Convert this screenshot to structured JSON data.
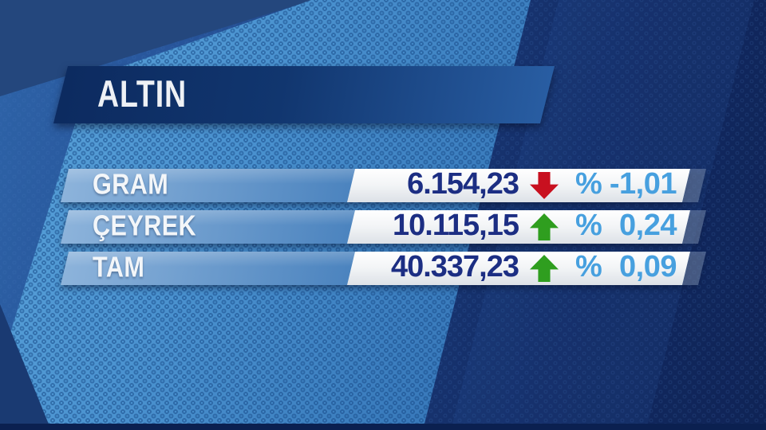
{
  "header": {
    "title": "ALTIN"
  },
  "rows": [
    {
      "label": "GRAM",
      "value": "6.154,23",
      "direction": "down",
      "percent_symbol": "%",
      "change": "-1,01"
    },
    {
      "label": "ÇEYREK",
      "value": "10.115,15",
      "direction": "up",
      "percent_symbol": "%",
      "change": "0,24"
    },
    {
      "label": "TAM",
      "value": "40.337,23",
      "direction": "up",
      "percent_symbol": "%",
      "change": "0,09"
    }
  ],
  "chart_data": {
    "type": "table",
    "title": "ALTIN",
    "categories": [
      "GRAM",
      "ÇEYREK",
      "TAM"
    ],
    "series": [
      {
        "name": "price_try",
        "values": [
          6154.23,
          10115.15,
          40337.23
        ]
      },
      {
        "name": "change_percent",
        "values": [
          -1.01,
          0.24,
          0.09
        ]
      },
      {
        "name": "trend_direction",
        "values": [
          "down",
          "up",
          "up"
        ]
      }
    ],
    "legend_position": "none",
    "grid": false
  },
  "colors": {
    "value_text": "#1c2e83",
    "percent_text": "#47a0df",
    "up_arrow": "#2f9e1f",
    "down_arrow": "#c8101f",
    "header_bar_dark": "#0c2a5f",
    "header_bar_light": "#2a60a6",
    "label_bar_blue": "#4c84bf",
    "background_navy": "#122a63",
    "band_light_blue": "#4b93d0"
  }
}
